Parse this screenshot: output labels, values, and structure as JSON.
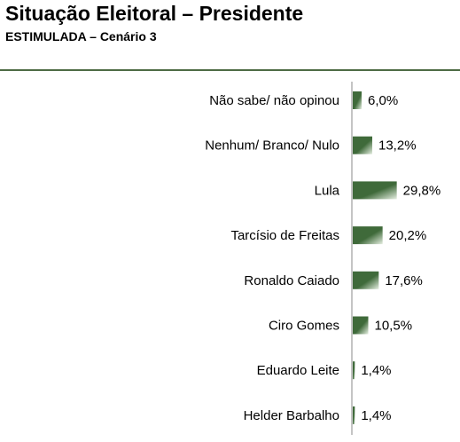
{
  "header": {
    "title": "Situação Eleitoral – Presidente",
    "subtitle": "ESTIMULADA – Cenário 3"
  },
  "colors": {
    "bar_dark": "#3f6a3a",
    "bar_light": "#e6efe2",
    "axis": "#888888",
    "rule": "#4e6b45"
  },
  "chart_data": {
    "type": "bar",
    "orientation": "horizontal",
    "title": "Situação Eleitoral – Presidente",
    "subtitle": "ESTIMULADA – Cenário 3",
    "categories": [
      "Não sabe/ não opinou",
      "Nenhum/ Branco/ Nulo",
      "Lula",
      "Tarcísio de Freitas",
      "Ronaldo Caiado",
      "Ciro Gomes",
      "Eduardo Leite",
      "Helder Barbalho"
    ],
    "values": [
      6.0,
      13.2,
      29.8,
      20.2,
      17.6,
      10.5,
      1.4,
      1.4
    ],
    "data_labels": [
      "6,0%",
      "13,2%",
      "29,8%",
      "20,2%",
      "17,6%",
      "10,5%",
      "1,4%",
      "1,4%"
    ],
    "xlim": [
      0,
      30
    ],
    "grid": false,
    "legend": "none"
  }
}
